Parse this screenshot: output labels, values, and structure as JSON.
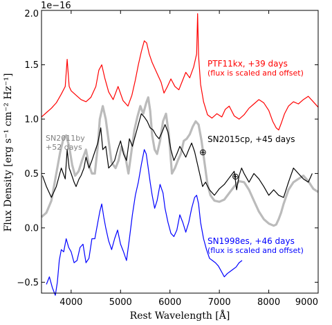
{
  "chart_data": {
    "type": "line",
    "title": "",
    "xlabel": "Rest Wavelength [Å]",
    "ylabel": "Flux Density [erg s⁻¹ cm⁻² Hz⁻¹]",
    "y_multiplier": "1e−16",
    "xlim": [
      3400,
      9000
    ],
    "ylim": [
      -0.6,
      2.0
    ],
    "xticks": [
      4000,
      5000,
      6000,
      7000,
      8000,
      9000
    ],
    "xtick_labels": [
      "4000",
      "5000",
      "6000",
      "7000",
      "8000",
      "9000"
    ],
    "yticks": [
      -0.5,
      0.0,
      0.5,
      1.0,
      1.5,
      2.0
    ],
    "ytick_labels": [
      "−0.5",
      "0.0",
      "0.5",
      "1.0",
      "1.5",
      "2.0"
    ],
    "grid": false,
    "legend": "none",
    "series": [
      {
        "color": "#ff0000",
        "x": [
          3400,
          3500,
          3600,
          3700,
          3800,
          3880,
          3920,
          3960,
          4000,
          4100,
          4200,
          4300,
          4400,
          4500,
          4560,
          4620,
          4680,
          4760,
          4850,
          4950,
          5050,
          5150,
          5230,
          5300,
          5360,
          5420,
          5480,
          5530,
          5580,
          5640,
          5700,
          5760,
          5820,
          5880,
          5950,
          6020,
          6100,
          6180,
          6250,
          6320,
          6400,
          6480,
          6540,
          6560,
          6580,
          6620,
          6680,
          6760,
          6850,
          6950,
          7050,
          7120,
          7200,
          7300,
          7400,
          7500,
          7600,
          7700,
          7800,
          7900,
          8000,
          8080,
          8150,
          8200,
          8260,
          8320,
          8400,
          8500,
          8600,
          8700,
          8800,
          8900,
          9000
        ],
        "y": [
          1.02,
          1.06,
          1.1,
          1.15,
          1.23,
          1.3,
          1.55,
          1.3,
          1.26,
          1.22,
          1.18,
          1.16,
          1.2,
          1.3,
          1.45,
          1.5,
          1.38,
          1.25,
          1.18,
          1.3,
          1.17,
          1.12,
          1.22,
          1.36,
          1.5,
          1.62,
          1.72,
          1.7,
          1.6,
          1.52,
          1.46,
          1.4,
          1.34,
          1.24,
          1.3,
          1.37,
          1.3,
          1.27,
          1.35,
          1.43,
          1.38,
          1.48,
          1.6,
          1.97,
          1.58,
          1.32,
          1.16,
          1.04,
          1.01,
          1.05,
          1.02,
          1.09,
          1.12,
          1.03,
          1.0,
          1.04,
          1.1,
          1.14,
          1.18,
          1.15,
          1.08,
          0.98,
          0.92,
          0.9,
          0.97,
          1.05,
          1.12,
          1.16,
          1.14,
          1.18,
          1.21,
          1.16,
          1.11
        ]
      },
      {
        "color": "#bbbbbb",
        "x": [
          3400,
          3500,
          3600,
          3700,
          3780,
          3850,
          3900,
          3960,
          4020,
          4080,
          4150,
          4220,
          4300,
          4360,
          4420,
          4480,
          4540,
          4580,
          4640,
          4700,
          4760,
          4820,
          4900,
          4960,
          5020,
          5100,
          5160,
          5220,
          5280,
          5340,
          5400,
          5460,
          5520,
          5560,
          5600,
          5640,
          5690,
          5740,
          5800,
          5860,
          5920,
          5980,
          6040,
          6100,
          6160,
          6220,
          6280,
          6340,
          6400,
          6460,
          6520,
          6580,
          6640,
          6700,
          6760,
          6820,
          6900,
          7000,
          7100,
          7200,
          7300,
          7400,
          7500,
          7600,
          7700,
          7800,
          7900,
          8000,
          8100,
          8150,
          8200,
          8250,
          8300,
          8400,
          8500,
          8600,
          8700,
          8800,
          8900,
          9000
        ],
        "y": [
          0.1,
          0.14,
          0.25,
          0.5,
          0.7,
          0.83,
          0.85,
          0.75,
          0.58,
          0.48,
          0.52,
          0.62,
          0.72,
          0.58,
          0.5,
          0.5,
          0.75,
          1.0,
          1.12,
          1.0,
          0.8,
          0.6,
          0.55,
          0.62,
          0.75,
          0.65,
          0.5,
          0.7,
          0.9,
          1.02,
          1.12,
          1.05,
          1.15,
          1.2,
          1.08,
          0.85,
          0.72,
          0.68,
          0.8,
          0.98,
          1.05,
          0.85,
          0.5,
          0.55,
          0.62,
          0.68,
          0.8,
          0.82,
          0.86,
          0.93,
          0.98,
          0.95,
          0.8,
          0.6,
          0.4,
          0.3,
          0.25,
          0.24,
          0.26,
          0.32,
          0.38,
          0.43,
          0.42,
          0.35,
          0.25,
          0.15,
          0.08,
          0.04,
          0.02,
          0.03,
          0.08,
          0.14,
          0.22,
          0.35,
          0.42,
          0.45,
          0.48,
          0.43,
          0.36,
          0.33
        ]
      },
      {
        "color": "#000000",
        "x": [
          3420,
          3500,
          3600,
          3700,
          3800,
          3880,
          3920,
          3960,
          4000,
          4060,
          4100,
          4160,
          4200,
          4260,
          4300,
          4360,
          4420,
          4480,
          4540,
          4600,
          4640,
          4700,
          4760,
          4820,
          4880,
          4940,
          5000,
          5060,
          5120,
          5180,
          5240,
          5300,
          5360,
          5420,
          5480,
          5540,
          5600,
          5660,
          5720,
          5780,
          5840,
          5900,
          5960,
          6020,
          6080,
          6140,
          6200,
          6260,
          6320,
          6380,
          6440,
          6500,
          6540,
          6600,
          6660,
          6720,
          6800,
          6900,
          7000,
          7100,
          7200,
          7300,
          7350,
          7400,
          7450,
          7500,
          7600,
          7700,
          7800,
          7900,
          8000,
          8100,
          8200,
          8300,
          8400,
          8500,
          8600,
          8700,
          8800,
          8880
        ],
        "y": [
          0.48,
          0.38,
          0.28,
          0.38,
          0.55,
          0.45,
          0.72,
          0.55,
          0.5,
          0.42,
          0.38,
          0.45,
          0.48,
          0.55,
          0.65,
          0.55,
          0.62,
          0.7,
          0.78,
          0.92,
          0.72,
          0.75,
          0.55,
          0.58,
          0.62,
          0.72,
          0.8,
          0.68,
          0.62,
          0.82,
          0.75,
          0.85,
          0.95,
          1.05,
          1.02,
          0.98,
          0.92,
          0.9,
          0.85,
          0.82,
          0.88,
          0.95,
          0.88,
          0.72,
          0.62,
          0.68,
          0.75,
          0.7,
          0.65,
          0.72,
          0.78,
          0.7,
          0.62,
          0.5,
          0.38,
          0.42,
          0.35,
          0.3,
          0.36,
          0.4,
          0.46,
          0.52,
          0.35,
          0.48,
          0.55,
          0.5,
          0.42,
          0.5,
          0.45,
          0.38,
          0.3,
          0.35,
          0.3,
          0.28,
          0.42,
          0.55,
          0.5,
          0.45,
          0.42,
          0.5
        ]
      },
      {
        "color": "#0000ff",
        "x": [
          3500,
          3560,
          3620,
          3680,
          3720,
          3760,
          3800,
          3850,
          3900,
          3950,
          4000,
          4060,
          4120,
          4180,
          4240,
          4300,
          4360,
          4420,
          4480,
          4540,
          4580,
          4620,
          4660,
          4700,
          4760,
          4820,
          4880,
          4940,
          5000,
          5060,
          5120,
          5180,
          5240,
          5300,
          5360,
          5420,
          5480,
          5520,
          5560,
          5600,
          5640,
          5690,
          5740,
          5800,
          5860,
          5900,
          5960,
          6020,
          6080,
          6140,
          6200,
          6260,
          6320,
          6380,
          6440,
          6500,
          6540,
          6580,
          6620,
          6680,
          6740,
          6800,
          6860,
          6920,
          6980,
          7040,
          7100,
          7160,
          7220,
          7280,
          7340,
          7400,
          7460
        ],
        "y": [
          -0.52,
          -0.45,
          -0.55,
          -0.62,
          -0.5,
          -0.3,
          -0.2,
          -0.22,
          -0.1,
          -0.18,
          -0.22,
          -0.32,
          -0.3,
          -0.18,
          -0.15,
          -0.32,
          -0.28,
          -0.1,
          -0.1,
          0.05,
          0.15,
          0.22,
          0.1,
          0.0,
          -0.12,
          -0.2,
          -0.1,
          -0.02,
          -0.15,
          -0.22,
          -0.3,
          -0.1,
          0.12,
          0.3,
          0.42,
          0.58,
          0.72,
          0.68,
          0.55,
          0.42,
          0.3,
          0.18,
          0.25,
          0.4,
          0.32,
          0.18,
          0.05,
          -0.05,
          -0.08,
          -0.02,
          0.12,
          0.05,
          -0.04,
          0.05,
          0.18,
          0.28,
          0.3,
          0.22,
          0.05,
          -0.1,
          -0.2,
          -0.28,
          -0.3,
          -0.32,
          -0.35,
          -0.4,
          -0.45,
          -0.42,
          -0.4,
          -0.38,
          -0.36,
          -0.32,
          -0.3
        ]
      }
    ]
  },
  "annotations": {
    "ptf_name": "PTF11kx, +39 days",
    "ptf_note": "(flux is scaled and offset)",
    "sn2015_name": "SN2015cp, +45 days",
    "sn2011_line1": "SN2011by",
    "sn2011_line2": "+52 days",
    "sn1998_name": "SN1998es, +46 days",
    "sn1998_note": "(flux is scaled and offset)",
    "telluric_symbol": "⊕",
    "colors": {
      "ptf": "#ff0000",
      "sn2015": "#000000",
      "sn2011": "#808080",
      "sn1998": "#0000ff"
    }
  }
}
